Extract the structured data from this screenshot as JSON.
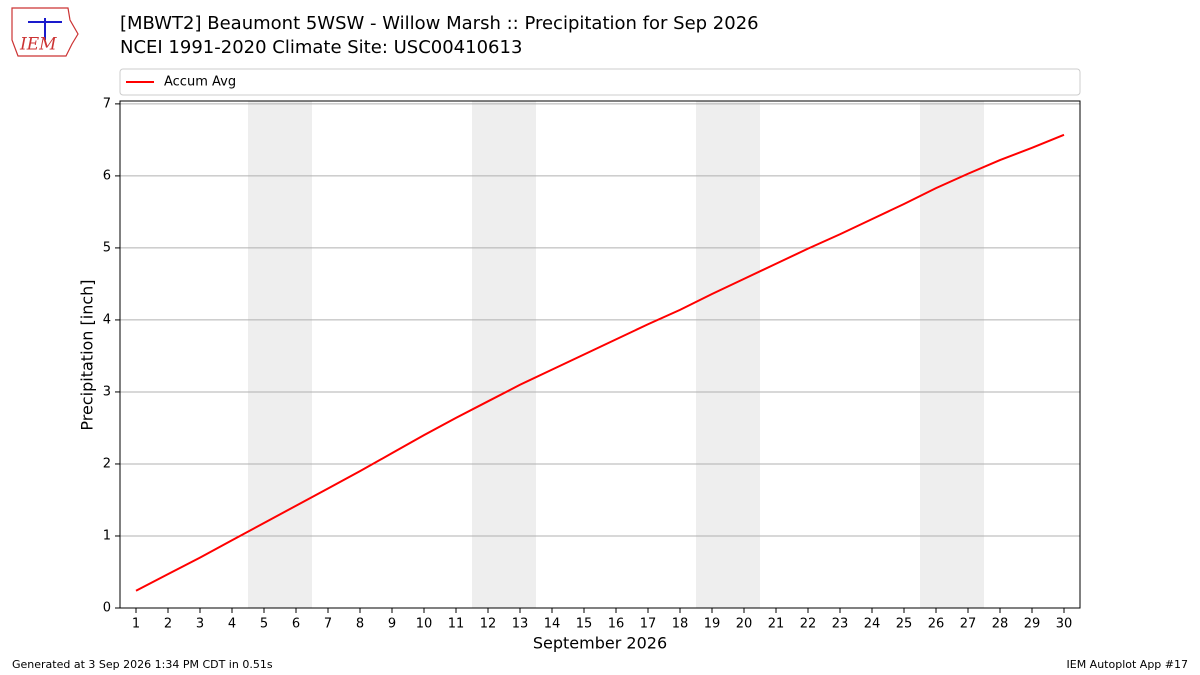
{
  "logo_text": "IEM",
  "footer_left": "Generated at 3 Sep 2026 1:34 PM CDT in 0.51s",
  "footer_right": "IEM Autoplot App #17",
  "chart_data": {
    "type": "line",
    "title": "[MBWT2] Beaumont 5WSW - Willow Marsh :: Precipitation for Sep 2026",
    "subtitle": "NCEI 1991-2020 Climate Site: USC00410613",
    "x_label": "September 2026",
    "y_label": "Precipitation [inch]",
    "x": [
      1,
      2,
      3,
      4,
      5,
      6,
      7,
      8,
      9,
      10,
      11,
      12,
      13,
      14,
      15,
      16,
      17,
      18,
      19,
      20,
      21,
      22,
      23,
      24,
      25,
      26,
      27,
      28,
      29,
      30
    ],
    "series": [
      {
        "name": "Accum Avg",
        "color": "#ff0000",
        "values": [
          0.24,
          0.47,
          0.7,
          0.94,
          1.18,
          1.42,
          1.66,
          1.9,
          2.15,
          2.4,
          2.64,
          2.87,
          3.1,
          3.31,
          3.52,
          3.73,
          3.94,
          4.14,
          4.36,
          4.57,
          4.78,
          4.99,
          5.19,
          5.4,
          5.61,
          5.83,
          6.03,
          6.22,
          6.39,
          6.57
        ]
      }
    ],
    "shaded_spans": [
      [
        4.5,
        6.5
      ],
      [
        11.5,
        13.5
      ],
      [
        18.5,
        20.5
      ],
      [
        25.5,
        27.5
      ]
    ],
    "shade_color": "#eeeeee",
    "xlim": [
      0.5,
      30.5
    ],
    "xticks": [
      1,
      2,
      3,
      4,
      5,
      6,
      7,
      8,
      9,
      10,
      11,
      12,
      13,
      14,
      15,
      16,
      17,
      18,
      19,
      20,
      21,
      22,
      23,
      24,
      25,
      26,
      27,
      28,
      29,
      30
    ],
    "ylim": [
      0,
      7.04
    ],
    "yticks": [
      0,
      1,
      2,
      3,
      4,
      5,
      6,
      7
    ],
    "grid": true,
    "legend": "top"
  }
}
